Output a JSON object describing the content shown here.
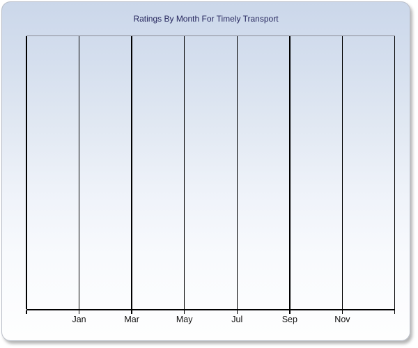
{
  "title": "Ratings By Month For Timely Transport",
  "colors": {
    "title_text": "#26265E",
    "tick_label_text": "#111111",
    "gridline": "#000000",
    "axis_line": "#000000",
    "plot_top_border": "#8B8B95",
    "panel_border": "#B9BEC8",
    "panel_gradient_top": "#CBD7EA",
    "panel_gradient_bottom": "#FEFEFE"
  },
  "chart_data": {
    "type": "line",
    "title": "Ratings By Month For Timely Transport",
    "xlabel": "",
    "ylabel": "",
    "x_axis": {
      "tick_labels": [
        "Jan",
        "Mar",
        "May",
        "Jul",
        "Sep",
        "Nov"
      ],
      "gridline_count": 8,
      "labeled_gridline_indices": [
        1,
        2,
        3,
        4,
        5,
        6
      ]
    },
    "y_axis": {
      "tick_labels": [],
      "gridlines": false
    },
    "series": [],
    "legend": "none",
    "grid": "vertical-only"
  }
}
